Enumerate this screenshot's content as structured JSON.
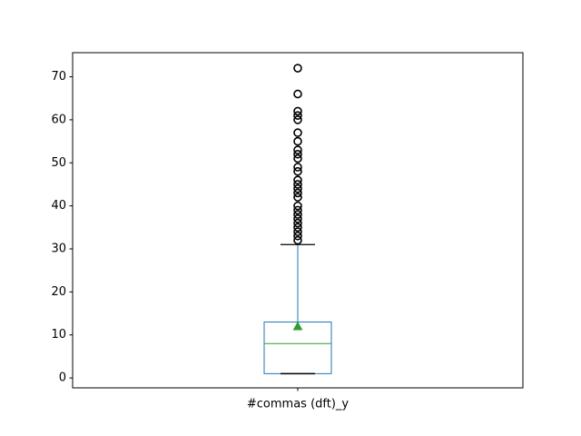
{
  "chart_data": {
    "type": "box",
    "categories": [
      "#commas (dft)_y"
    ],
    "ylim": [
      -2.3,
      75.6
    ],
    "yticks": [
      0,
      10,
      20,
      30,
      40,
      50,
      60,
      70
    ],
    "grid": false,
    "legend": "none",
    "colors": {
      "box": "#1f77b4",
      "whisker": "#1f77b4",
      "cap": "#000000",
      "median": "#2ca02c",
      "mean_marker": "#2ca02c",
      "outlier": "#000000"
    },
    "box": {
      "whisker_low": 1,
      "q1": 1,
      "median": 8,
      "q3": 13,
      "whisker_high": 31,
      "mean": 12,
      "outliers": [
        32,
        33,
        34,
        35,
        36,
        37,
        38,
        39,
        40,
        42,
        43,
        44,
        45,
        46,
        48,
        49,
        51,
        52,
        53,
        55,
        57,
        60,
        61,
        62,
        66,
        72
      ]
    }
  }
}
